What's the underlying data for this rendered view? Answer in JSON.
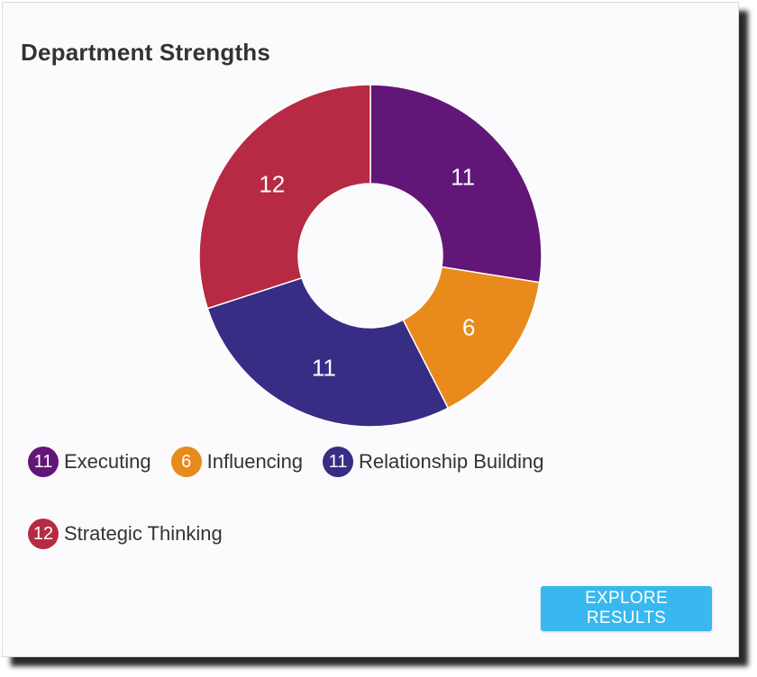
{
  "card": {
    "title": "Department Strengths",
    "button_label": "EXPLORE RESULTS",
    "button_color": "#38b8ee"
  },
  "chart_data": {
    "type": "pie",
    "variant": "donut",
    "title": "Department Strengths",
    "slices": [
      {
        "label": "Executing",
        "value": 11,
        "color": "#621677"
      },
      {
        "label": "Influencing",
        "value": 6,
        "color": "#e98a1d"
      },
      {
        "label": "Relationship Building",
        "value": 11,
        "color": "#382d85"
      },
      {
        "label": "Strategic Thinking",
        "value": 12,
        "color": "#b72a44"
      }
    ],
    "legend_placement": "bottom-left"
  }
}
